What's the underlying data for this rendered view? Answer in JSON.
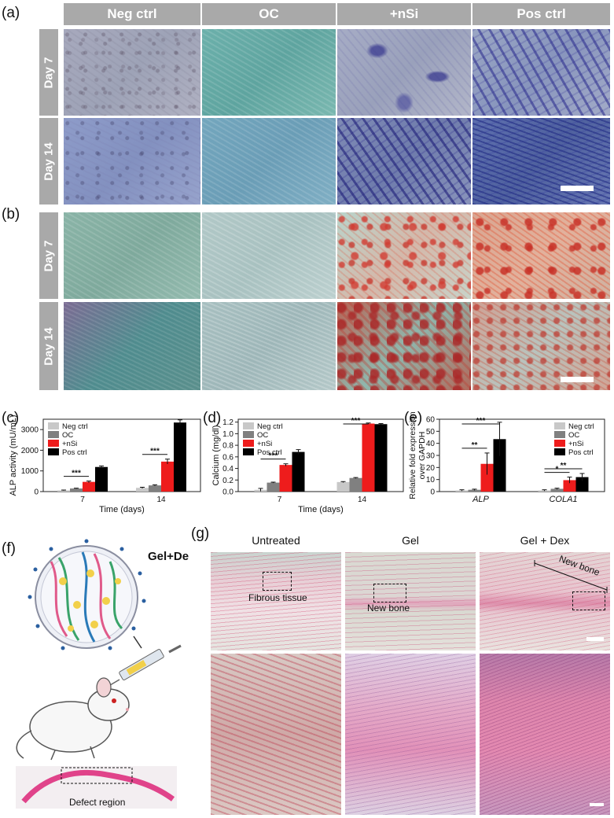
{
  "panels": {
    "a": "(a)",
    "b": "(b)",
    "c": "(c)",
    "d": "(d)",
    "e": "(e)",
    "f": "(f)",
    "g": "(g)"
  },
  "staining": {
    "columns": [
      "Neg ctrl",
      "OC",
      "+nSi",
      "Pos ctrl"
    ],
    "rows": [
      "Day 7",
      "Day 14"
    ]
  },
  "chart_data": [
    {
      "type": "bar",
      "panel": "(c)",
      "categories": [
        "7",
        "14"
      ],
      "xlabel": "Time (days)",
      "ylabel": "ALP activity (mU/mL)",
      "ylim": [
        0,
        3500
      ],
      "yticks": [
        0,
        1000,
        2000,
        3000
      ],
      "legend_position": "top-left",
      "series": [
        {
          "name": "Neg ctrl",
          "color": "#c8c8c8",
          "values": [
            60,
            180
          ],
          "errors": [
            15,
            30
          ]
        },
        {
          "name": "OC",
          "color": "#808080",
          "values": [
            150,
            300
          ],
          "errors": [
            15,
            30
          ]
        },
        {
          "name": "+nSi",
          "color": "#ee1c1c",
          "values": [
            470,
            1450
          ],
          "errors": [
            40,
            120
          ]
        },
        {
          "name": "Pos ctrl",
          "color": "#000000",
          "values": [
            1190,
            3340
          ],
          "errors": [
            50,
            130
          ]
        }
      ],
      "annotations": [
        {
          "label": "***",
          "category": "7",
          "from": "Neg ctrl",
          "to": "+nSi"
        },
        {
          "label": "***",
          "category": "14",
          "from": "Neg ctrl",
          "to": "+nSi"
        }
      ]
    },
    {
      "type": "bar",
      "panel": "(d)",
      "categories": [
        "7",
        "14"
      ],
      "xlabel": "Time (days)",
      "ylabel": "Calcium (mg/dl)",
      "ylim": [
        0,
        1.25
      ],
      "yticks": [
        0.0,
        0.2,
        0.4,
        0.6,
        0.8,
        1.0,
        1.2
      ],
      "legend_position": "top-left",
      "series": [
        {
          "name": "Neg ctrl",
          "color": "#c8c8c8",
          "values": [
            0.03,
            0.165
          ],
          "errors": [
            0.025,
            0.008
          ]
        },
        {
          "name": "OC",
          "color": "#808080",
          "values": [
            0.155,
            0.235
          ],
          "errors": [
            0.008,
            0.008
          ]
        },
        {
          "name": "+nSi",
          "color": "#ee1c1c",
          "values": [
            0.46,
            1.175
          ],
          "errors": [
            0.02,
            0.01
          ]
        },
        {
          "name": "Pos ctrl",
          "color": "#000000",
          "values": [
            0.685,
            1.165
          ],
          "errors": [
            0.04,
            0.01
          ]
        }
      ],
      "annotations": [
        {
          "label": "***",
          "category": "7",
          "from": "Neg ctrl",
          "to": "+nSi"
        },
        {
          "label": "***",
          "category": "14",
          "from": "Neg ctrl",
          "to": "+nSi"
        }
      ]
    },
    {
      "type": "bar",
      "panel": "(e)",
      "categories": [
        "ALP",
        "COLA1"
      ],
      "xlabel": "",
      "ylabel": "Relative fold expression over GAPDH",
      "ylabel_lines": [
        "Relative fold expression",
        "over GAPDH"
      ],
      "ylim": [
        0,
        60
      ],
      "yticks": [
        0,
        10,
        20,
        30,
        40,
        50,
        60
      ],
      "legend_position": "top-right",
      "series": [
        {
          "name": "Neg ctrl",
          "color": "#c8c8c8",
          "values": [
            1,
            1
          ],
          "errors": [
            0.5,
            0.5
          ]
        },
        {
          "name": "OC",
          "color": "#808080",
          "values": [
            1.5,
            2.3
          ],
          "errors": [
            0.5,
            0.5
          ]
        },
        {
          "name": "+nSi",
          "color": "#ee1c1c",
          "values": [
            23,
            9.5
          ],
          "errors": [
            9,
            2.5
          ]
        },
        {
          "name": "Pos ctrl",
          "color": "#000000",
          "values": [
            43.5,
            12
          ],
          "errors": [
            14,
            3
          ]
        }
      ],
      "annotations": [
        {
          "label": "**",
          "category": "ALP",
          "from": "Neg ctrl",
          "to": "+nSi"
        },
        {
          "label": "***",
          "category": "ALP",
          "from": "Neg ctrl",
          "to": "Pos ctrl"
        },
        {
          "label": "*",
          "category": "COLA1",
          "from": "Neg ctrl",
          "to": "+nSi"
        },
        {
          "label": "**",
          "category": "COLA1",
          "from": "Neg ctrl",
          "to": "Pos ctrl"
        }
      ]
    }
  ],
  "schematic": {
    "label": "Gel+Dex",
    "defect_label": "Defect region"
  },
  "histology": {
    "columns": [
      "Untreated",
      "Gel",
      "Gel + Dex"
    ],
    "annotations": {
      "fibrous": "Fibrous tissue",
      "new_bone_gel": "New bone",
      "new_bone_geldex": "New bone"
    }
  }
}
